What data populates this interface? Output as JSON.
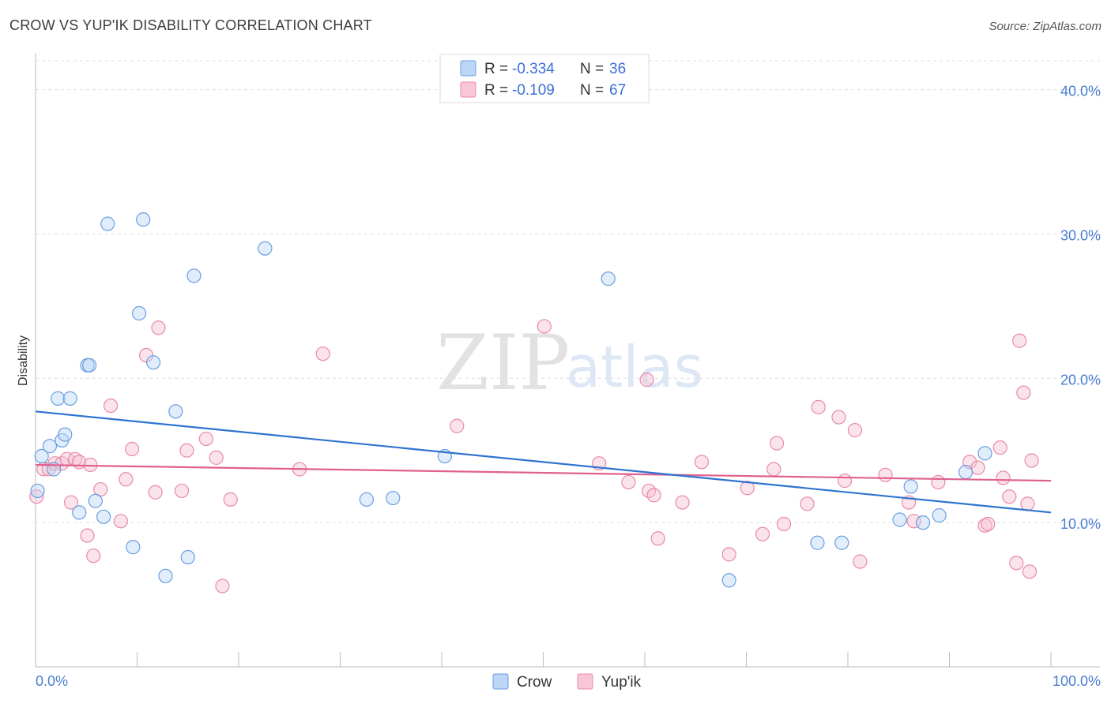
{
  "header": {
    "title": "CROW VS YUP'IK DISABILITY CORRELATION CHART",
    "source": "Source: ZipAtlas.com"
  },
  "watermark": {
    "zip": "ZIP",
    "atlas": "atlas"
  },
  "legend_top": {
    "rows": [
      {
        "r_label": "R =",
        "r_value": "-0.334",
        "n_label": "N =",
        "n_value": "36",
        "color": "#7fb0ea"
      },
      {
        "r_label": "R =",
        "r_value": "-0.109",
        "n_label": "N =",
        "n_value": "67",
        "color": "#f0a0b8"
      }
    ]
  },
  "chart_data": {
    "type": "scatter",
    "title": "CROW VS YUP'IK DISABILITY CORRELATION CHART",
    "xlabel": "",
    "ylabel": "Disability",
    "xlim": [
      0,
      100
    ],
    "ylim": [
      0,
      42
    ],
    "x_tick_labels": [
      "0.0%",
      "100.0%"
    ],
    "y_ticks": [
      10,
      20,
      30,
      40
    ],
    "y_tick_labels": [
      "10.0%",
      "20.0%",
      "30.0%",
      "40.0%"
    ],
    "grid": true,
    "legend_position": "top-center",
    "series": [
      {
        "name": "Crow",
        "color": "#7fb0ea",
        "line_color": "#2f74d0",
        "r": -0.334,
        "n": 36,
        "trend": [
          [
            0,
            17.7
          ],
          [
            100,
            10.7
          ]
        ],
        "points": [
          [
            0.2,
            12.2
          ],
          [
            0.6,
            14.6
          ],
          [
            1.4,
            15.3
          ],
          [
            1.8,
            13.7
          ],
          [
            2.2,
            18.6
          ],
          [
            2.6,
            15.7
          ],
          [
            2.9,
            16.1
          ],
          [
            3.4,
            18.6
          ],
          [
            4.3,
            10.7
          ],
          [
            5.1,
            20.9
          ],
          [
            5.3,
            20.9
          ],
          [
            5.9,
            11.5
          ],
          [
            6.7,
            10.4
          ],
          [
            7.1,
            30.7
          ],
          [
            9.6,
            8.3
          ],
          [
            10.2,
            24.5
          ],
          [
            10.6,
            31.0
          ],
          [
            11.6,
            21.1
          ],
          [
            12.8,
            6.3
          ],
          [
            13.8,
            17.7
          ],
          [
            15.0,
            7.6
          ],
          [
            15.6,
            27.1
          ],
          [
            22.6,
            29.0
          ],
          [
            32.6,
            11.6
          ],
          [
            35.2,
            11.7
          ],
          [
            40.3,
            14.6
          ],
          [
            56.4,
            26.9
          ],
          [
            68.3,
            6.0
          ],
          [
            77.0,
            8.6
          ],
          [
            79.4,
            8.6
          ],
          [
            85.1,
            10.2
          ],
          [
            86.2,
            12.5
          ],
          [
            87.4,
            10.0
          ],
          [
            89.0,
            10.5
          ],
          [
            91.6,
            13.5
          ],
          [
            93.5,
            14.8
          ]
        ]
      },
      {
        "name": "Yup'ik",
        "color": "#f0a0b8",
        "line_color": "#e0608e",
        "r": -0.109,
        "n": 67,
        "trend": [
          [
            0,
            14.0
          ],
          [
            100,
            12.9
          ]
        ],
        "points": [
          [
            0.1,
            11.8
          ],
          [
            0.8,
            13.7
          ],
          [
            1.3,
            13.7
          ],
          [
            1.9,
            14.1
          ],
          [
            2.6,
            14.1
          ],
          [
            3.1,
            14.4
          ],
          [
            3.5,
            11.4
          ],
          [
            3.9,
            14.4
          ],
          [
            4.3,
            14.2
          ],
          [
            5.1,
            9.1
          ],
          [
            5.4,
            14.0
          ],
          [
            5.7,
            7.7
          ],
          [
            6.4,
            12.3
          ],
          [
            7.4,
            18.1
          ],
          [
            8.4,
            10.1
          ],
          [
            8.9,
            13.0
          ],
          [
            9.5,
            15.1
          ],
          [
            10.9,
            21.6
          ],
          [
            11.8,
            12.1
          ],
          [
            12.1,
            23.5
          ],
          [
            14.4,
            12.2
          ],
          [
            14.9,
            15.0
          ],
          [
            16.8,
            15.8
          ],
          [
            17.8,
            14.5
          ],
          [
            18.4,
            5.6
          ],
          [
            19.2,
            11.6
          ],
          [
            26.0,
            13.7
          ],
          [
            28.3,
            21.7
          ],
          [
            41.5,
            16.7
          ],
          [
            50.1,
            23.6
          ],
          [
            55.5,
            14.1
          ],
          [
            58.4,
            12.8
          ],
          [
            60.2,
            19.9
          ],
          [
            60.4,
            12.2
          ],
          [
            60.9,
            11.9
          ],
          [
            61.3,
            8.9
          ],
          [
            63.7,
            11.4
          ],
          [
            65.6,
            14.2
          ],
          [
            68.3,
            7.8
          ],
          [
            70.1,
            12.4
          ],
          [
            71.6,
            9.2
          ],
          [
            72.7,
            13.7
          ],
          [
            73.0,
            15.5
          ],
          [
            73.7,
            9.9
          ],
          [
            76.0,
            11.3
          ],
          [
            77.1,
            18.0
          ],
          [
            79.1,
            17.3
          ],
          [
            79.7,
            12.9
          ],
          [
            80.7,
            16.4
          ],
          [
            81.2,
            7.3
          ],
          [
            83.7,
            13.3
          ],
          [
            86.0,
            11.4
          ],
          [
            86.5,
            10.1
          ],
          [
            88.9,
            12.8
          ],
          [
            92.0,
            14.2
          ],
          [
            92.8,
            13.8
          ],
          [
            93.5,
            9.8
          ],
          [
            93.8,
            9.9
          ],
          [
            95.0,
            15.2
          ],
          [
            95.3,
            13.1
          ],
          [
            95.9,
            11.8
          ],
          [
            96.6,
            7.2
          ],
          [
            96.9,
            22.6
          ],
          [
            97.3,
            19.0
          ],
          [
            97.7,
            11.3
          ],
          [
            97.9,
            6.6
          ],
          [
            98.1,
            14.3
          ]
        ]
      }
    ]
  },
  "bottom_legend": {
    "series_a": "Crow",
    "series_b": "Yup'ik"
  }
}
